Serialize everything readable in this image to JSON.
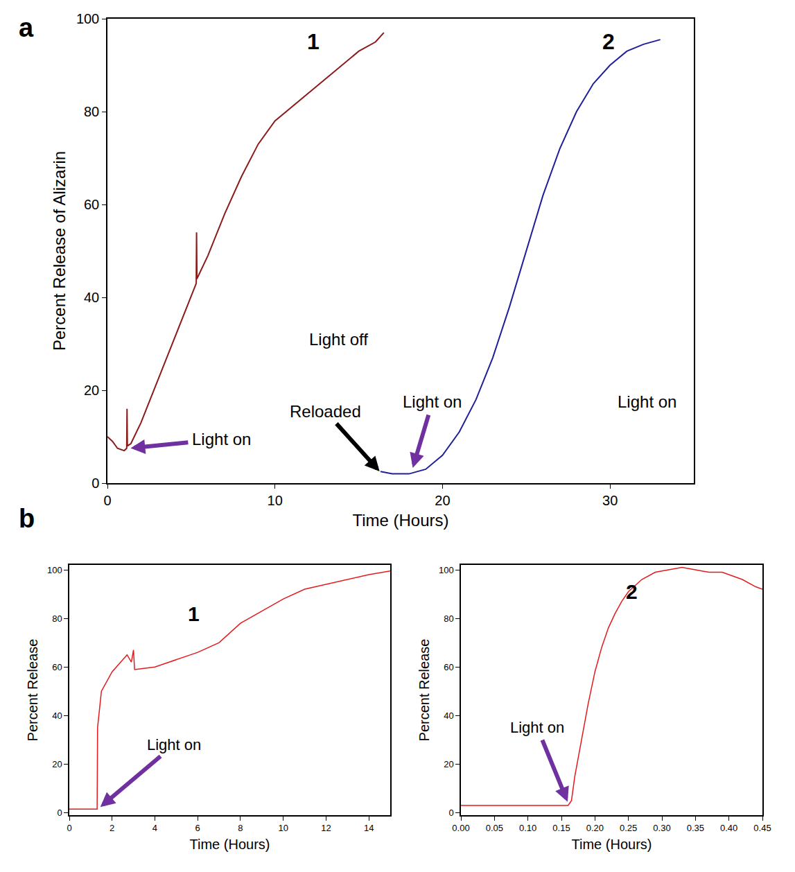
{
  "chart_data": [
    {
      "panel": "a",
      "type": "line",
      "xlabel": "Time (Hours)",
      "ylabel": "Percent Release of Alizarin",
      "xlim": [
        0,
        35
      ],
      "xticks": [
        0,
        10,
        20,
        30
      ],
      "ylim": [
        0,
        100
      ],
      "yticks": [
        0,
        20,
        40,
        60,
        80,
        100
      ],
      "grid": false,
      "series": [
        {
          "color": "#8b1a1a",
          "x": [
            0,
            0.3,
            0.6,
            1.0,
            1.15,
            1.17,
            1.19,
            1.4,
            2,
            3,
            4,
            5,
            5.3,
            5.32,
            5.34,
            6,
            7,
            8,
            9,
            10,
            11,
            12,
            13,
            14,
            15,
            16,
            16.5
          ],
          "values": [
            10,
            9,
            7.5,
            7,
            7.5,
            16,
            8,
            8.5,
            13,
            22,
            31,
            40,
            43,
            54,
            44,
            49,
            58,
            66,
            73,
            78,
            81,
            84,
            87,
            90,
            93,
            95,
            97
          ]
        },
        {
          "color": "#1f1f9a",
          "x": [
            16.3,
            17,
            18,
            18.2,
            19,
            20,
            21,
            22,
            23,
            24,
            25,
            26,
            27,
            28,
            29,
            30,
            31,
            32,
            33
          ],
          "values": [
            2.5,
            2,
            2,
            2.2,
            3,
            6,
            11,
            18,
            27,
            38,
            50,
            62,
            72,
            80,
            86,
            90,
            93,
            94.5,
            95.5
          ]
        }
      ],
      "annotations": [
        {
          "text": "1",
          "x": 12.3,
          "y": 95
        },
        {
          "text": "2",
          "x": 29.9,
          "y": 95
        },
        {
          "text": "Light on",
          "x": 6.8,
          "y": 9.5,
          "arrow_to": [
            1.3,
            7.5
          ],
          "color": "#7030a0"
        },
        {
          "text": "Reloaded",
          "x": 13,
          "y": 15.5,
          "arrow_to": [
            16.3,
            2.3
          ],
          "color": "#000000"
        },
        {
          "text": "Light on",
          "x": 19.4,
          "y": 17.5,
          "arrow_to": [
            18.2,
            3
          ],
          "color": "#7030a0"
        },
        {
          "text": "Light off",
          "x": 13.8,
          "y": 31
        },
        {
          "text": "Light on",
          "x": 32.2,
          "y": 17.5
        }
      ]
    },
    {
      "panel": "b",
      "type": "line",
      "xlabel": "Time (Hours)",
      "ylabel": "Percent Release",
      "xlim": [
        0,
        15
      ],
      "xticks": [
        0,
        2,
        4,
        6,
        8,
        10,
        12,
        14
      ],
      "ylim": [
        -1,
        102
      ],
      "yticks": [
        0,
        20,
        40,
        60,
        80,
        100
      ],
      "grid": false,
      "series": [
        {
          "color": "#e31a1c",
          "x": [
            0,
            1.3,
            1.32,
            1.5,
            2,
            2.5,
            2.7,
            2.9,
            3.0,
            3.05,
            3.1,
            4,
            5,
            6,
            7,
            7.5,
            8,
            9,
            10,
            11,
            12,
            13,
            14,
            15
          ],
          "values": [
            1.5,
            1.5,
            35,
            50,
            58,
            63,
            65,
            62,
            67,
            59,
            59,
            60,
            63,
            66,
            70,
            74,
            78,
            83,
            88,
            92,
            94,
            96,
            98,
            99.5
          ]
        }
      ],
      "annotations": [
        {
          "text": "1",
          "x": 5.8,
          "y": 82
        },
        {
          "text": "Light on",
          "x": 4.9,
          "y": 28,
          "arrow_to": [
            1.4,
            2
          ],
          "color": "#7030a0"
        }
      ]
    },
    {
      "type": "line",
      "xlabel": "Time (Hours)",
      "ylabel": "Percent Release",
      "xlim": [
        0,
        0.45
      ],
      "xticks": [
        {
          "value": 0,
          "label": "0.00"
        },
        {
          "value": 0.05,
          "label": "0.05"
        },
        {
          "value": 0.1,
          "label": "0.10"
        },
        {
          "value": 0.15,
          "label": "0.15"
        },
        {
          "value": 0.2,
          "label": "0.20"
        },
        {
          "value": 0.25,
          "label": "0.25"
        },
        {
          "value": 0.3,
          "label": "0.30"
        },
        {
          "value": 0.35,
          "label": "0.35"
        },
        {
          "value": 0.4,
          "label": "0.40"
        },
        {
          "value": 0.45,
          "label": "0.45"
        }
      ],
      "ylim": [
        -1,
        102
      ],
      "yticks": [
        0,
        20,
        40,
        60,
        80,
        100
      ],
      "grid": false,
      "series": [
        {
          "color": "#e31a1c",
          "x": [
            0,
            0.16,
            0.165,
            0.17,
            0.18,
            0.19,
            0.2,
            0.21,
            0.22,
            0.23,
            0.24,
            0.25,
            0.27,
            0.29,
            0.31,
            0.33,
            0.35,
            0.37,
            0.39,
            0.4,
            0.42,
            0.44,
            0.45
          ],
          "values": [
            3,
            3,
            5,
            15,
            30,
            45,
            58,
            68,
            76,
            82,
            87,
            91,
            96,
            99,
            100,
            101,
            100,
            99,
            99,
            98,
            96,
            93,
            92
          ]
        }
      ],
      "annotations": [
        {
          "text": "2",
          "x": 0.255,
          "y": 91
        },
        {
          "text": "Light on",
          "x": 0.114,
          "y": 35,
          "arrow_to": [
            0.16,
            4
          ],
          "color": "#7030a0"
        }
      ]
    }
  ]
}
